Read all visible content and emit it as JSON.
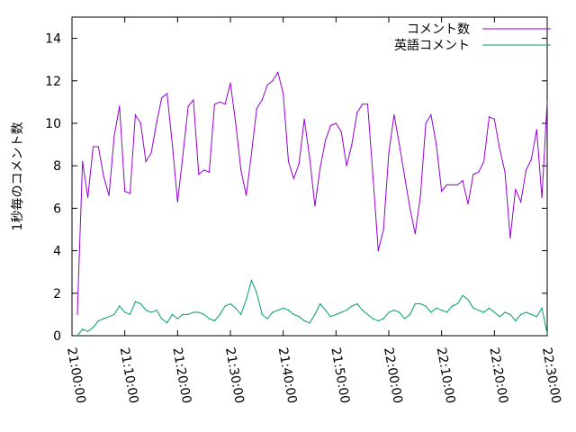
{
  "chart_data": {
    "type": "line",
    "title": "",
    "xlabel": "",
    "ylabel": "1秒毎のコメント数",
    "xlim": [
      "21:00:00",
      "22:30:00"
    ],
    "ylim": [
      0,
      15
    ],
    "yticks": [
      0,
      2,
      4,
      6,
      8,
      10,
      12,
      14
    ],
    "xticks": [
      "21:00:00",
      "21:10:00",
      "21:20:00",
      "21:30:00",
      "21:40:00",
      "21:50:00",
      "22:00:00",
      "22:10:00",
      "22:20:00",
      "22:30:00"
    ],
    "grid": false,
    "legend_position": "top-right",
    "series": [
      {
        "name": "コメント数",
        "color": "#9400d3",
        "x": [
          "21:01:00",
          "21:02:00",
          "21:03:00",
          "21:04:00",
          "21:05:00",
          "21:06:00",
          "21:07:00",
          "21:08:00",
          "21:09:00",
          "21:10:00",
          "21:11:00",
          "21:12:00",
          "21:13:00",
          "21:14:00",
          "21:15:00",
          "21:16:00",
          "21:17:00",
          "21:18:00",
          "21:19:00",
          "21:20:00",
          "21:21:00",
          "21:22:00",
          "21:23:00",
          "21:24:00",
          "21:25:00",
          "21:26:00",
          "21:27:00",
          "21:28:00",
          "21:29:00",
          "21:30:00",
          "21:31:00",
          "21:32:00",
          "21:33:00",
          "21:34:00",
          "21:35:00",
          "21:36:00",
          "21:37:00",
          "21:38:00",
          "21:39:00",
          "21:40:00",
          "21:41:00",
          "21:42:00",
          "21:43:00",
          "21:44:00",
          "21:45:00",
          "21:46:00",
          "21:47:00",
          "21:48:00",
          "21:49:00",
          "21:50:00",
          "21:51:00",
          "21:52:00",
          "21:53:00",
          "21:54:00",
          "21:55:00",
          "21:56:00",
          "21:57:00",
          "21:58:00",
          "21:59:00",
          "22:00:00",
          "22:01:00",
          "22:02:00",
          "22:03:00",
          "22:04:00",
          "22:05:00",
          "22:06:00",
          "22:07:00",
          "22:08:00",
          "22:09:00",
          "22:10:00",
          "22:11:00",
          "22:12:00",
          "22:13:00",
          "22:14:00",
          "22:15:00",
          "22:16:00",
          "22:17:00",
          "22:18:00",
          "22:19:00",
          "22:20:00",
          "22:21:00",
          "22:22:00",
          "22:23:00",
          "22:24:00",
          "22:25:00",
          "22:26:00",
          "22:27:00",
          "22:28:00",
          "22:29:00",
          "22:30:00"
        ],
        "y": [
          1.0,
          8.2,
          6.5,
          8.9,
          8.9,
          7.5,
          6.6,
          9.4,
          10.8,
          6.8,
          6.7,
          10.4,
          10.0,
          8.2,
          8.6,
          10.0,
          11.2,
          11.4,
          9.0,
          6.3,
          8.5,
          10.8,
          11.1,
          7.6,
          7.8,
          7.7,
          10.9,
          11.0,
          10.9,
          11.9,
          10.0,
          7.8,
          6.6,
          8.6,
          10.7,
          11.1,
          11.8,
          12.0,
          12.4,
          11.4,
          8.2,
          7.4,
          8.1,
          10.2,
          8.4,
          6.1,
          7.9,
          9.2,
          9.9,
          10.0,
          9.6,
          8.0,
          9.0,
          10.5,
          10.9,
          10.9,
          7.5,
          4.0,
          5.0,
          8.6,
          10.4,
          9.0,
          7.5,
          6.0,
          4.8,
          6.6,
          10.0,
          10.4,
          9.0,
          6.8,
          7.1,
          7.1,
          7.1,
          7.3,
          6.2,
          7.6,
          7.7,
          8.2,
          10.3,
          10.2,
          8.8,
          7.7,
          4.6,
          6.9,
          6.3,
          7.8,
          8.3,
          9.7,
          6.5,
          11.0
        ]
      },
      {
        "name": "英語コメント",
        "color": "#009e73",
        "x": [
          "21:01:00",
          "21:02:00",
          "21:03:00",
          "21:04:00",
          "21:05:00",
          "21:06:00",
          "21:07:00",
          "21:08:00",
          "21:09:00",
          "21:10:00",
          "21:11:00",
          "21:12:00",
          "21:13:00",
          "21:14:00",
          "21:15:00",
          "21:16:00",
          "21:17:00",
          "21:18:00",
          "21:19:00",
          "21:20:00",
          "21:21:00",
          "21:22:00",
          "21:23:00",
          "21:24:00",
          "21:25:00",
          "21:26:00",
          "21:27:00",
          "21:28:00",
          "21:29:00",
          "21:30:00",
          "21:31:00",
          "21:32:00",
          "21:33:00",
          "21:34:00",
          "21:35:00",
          "21:36:00",
          "21:37:00",
          "21:38:00",
          "21:39:00",
          "21:40:00",
          "21:41:00",
          "21:42:00",
          "21:43:00",
          "21:44:00",
          "21:45:00",
          "21:46:00",
          "21:47:00",
          "21:48:00",
          "21:49:00",
          "21:50:00",
          "21:51:00",
          "21:52:00",
          "21:53:00",
          "21:54:00",
          "21:55:00",
          "21:56:00",
          "21:57:00",
          "21:58:00",
          "21:59:00",
          "22:00:00",
          "22:01:00",
          "22:02:00",
          "22:03:00",
          "22:04:00",
          "22:05:00",
          "22:06:00",
          "22:07:00",
          "22:08:00",
          "22:09:00",
          "22:10:00",
          "22:11:00",
          "22:12:00",
          "22:13:00",
          "22:14:00",
          "22:15:00",
          "22:16:00",
          "22:17:00",
          "22:18:00",
          "22:19:00",
          "22:20:00",
          "22:21:00",
          "22:22:00",
          "22:23:00",
          "22:24:00",
          "22:25:00",
          "22:26:00",
          "22:27:00",
          "22:28:00",
          "22:29:00",
          "22:30:00"
        ],
        "y": [
          0.0,
          0.3,
          0.2,
          0.4,
          0.7,
          0.8,
          0.9,
          1.0,
          1.4,
          1.1,
          1.0,
          1.6,
          1.5,
          1.2,
          1.1,
          1.2,
          0.8,
          0.6,
          1.0,
          0.8,
          1.0,
          1.0,
          1.1,
          1.1,
          1.0,
          0.8,
          0.7,
          1.0,
          1.4,
          1.5,
          1.3,
          1.0,
          1.7,
          2.6,
          2.0,
          1.0,
          0.8,
          1.1,
          1.2,
          1.3,
          1.2,
          1.0,
          0.9,
          0.7,
          0.6,
          1.0,
          1.5,
          1.2,
          0.9,
          1.0,
          1.1,
          1.2,
          1.4,
          1.5,
          1.2,
          1.0,
          0.8,
          0.7,
          0.8,
          1.1,
          1.2,
          1.1,
          0.8,
          1.0,
          1.5,
          1.5,
          1.4,
          1.1,
          1.3,
          1.2,
          1.1,
          1.4,
          1.5,
          1.9,
          1.7,
          1.3,
          1.2,
          1.1,
          1.3,
          1.1,
          0.9,
          1.1,
          1.0,
          0.7,
          1.0,
          1.1,
          1.0,
          0.9,
          1.3,
          0.1
        ]
      }
    ]
  }
}
